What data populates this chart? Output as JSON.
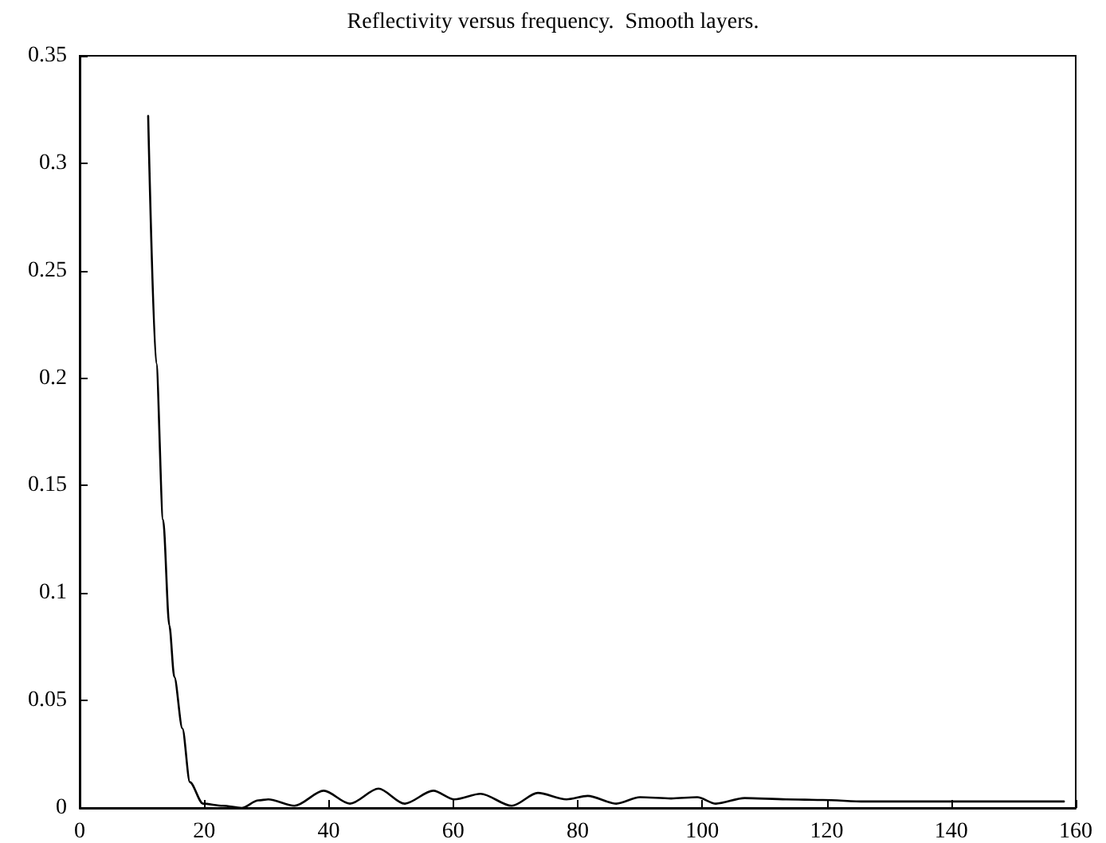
{
  "chart_data": {
    "type": "line",
    "title": "Reflectivity versus frequency.  Smooth layers.",
    "x": [
      11.0,
      12.3,
      13.4,
      14.4,
      15.2,
      16.5,
      17.7,
      19.8,
      23.0,
      26.0,
      28.7,
      30.3,
      34.5,
      39.2,
      43.4,
      48.0,
      52.2,
      56.8,
      60.2,
      64.4,
      69.4,
      73.6,
      78.2,
      81.6,
      86.2,
      90.0,
      95.0,
      99.2,
      102.2,
      106.8,
      113.5,
      119.4,
      126.1,
      132.9,
      139.6,
      146.3,
      153.1,
      158.1
    ],
    "values": [
      0.322,
      0.207,
      0.134,
      0.085,
      0.061,
      0.037,
      0.012,
      0.002,
      0.001,
      0.0,
      0.0035,
      0.004,
      0.001,
      0.008,
      0.002,
      0.009,
      0.002,
      0.008,
      0.004,
      0.0066,
      0.001,
      0.007,
      0.004,
      0.0056,
      0.002,
      0.005,
      0.0044,
      0.005,
      0.002,
      0.0046,
      0.004,
      0.0037,
      0.003,
      0.003,
      0.003,
      0.003,
      0.003,
      0.003
    ],
    "color": "#000000",
    "xlim": [
      0,
      160
    ],
    "xticks": [
      0,
      20,
      40,
      60,
      80,
      100,
      120,
      140,
      160
    ],
    "ylim": [
      0,
      0.35
    ],
    "yticks": [
      0,
      0.05,
      0.1,
      0.15,
      0.2,
      0.25,
      0.3,
      0.35
    ],
    "grid": false,
    "marker": "none",
    "line_style": "solid"
  }
}
